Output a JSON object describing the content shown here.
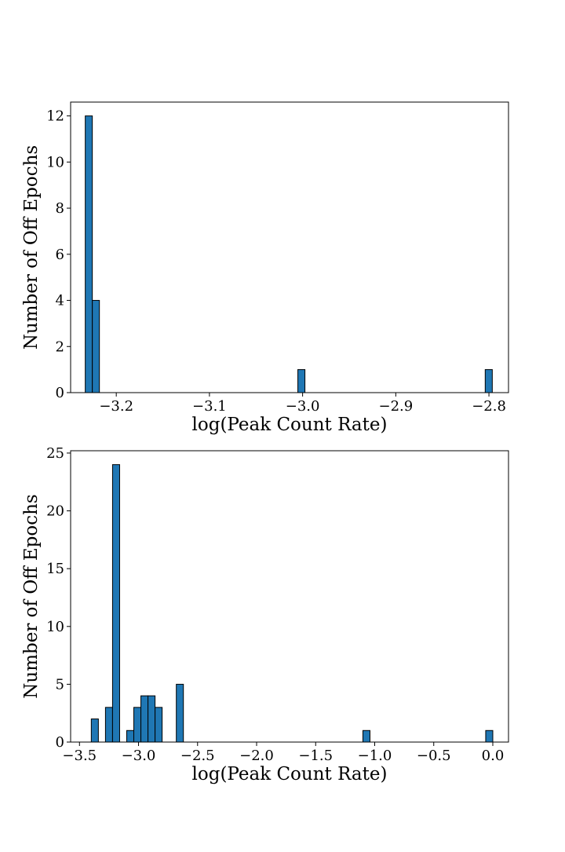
{
  "chart_data": [
    {
      "type": "bar",
      "title": "",
      "xlabel": "log(Peak Count Rate)",
      "ylabel": "Number of Off Epochs",
      "xlim": [
        -3.249,
        -2.779
      ],
      "ylim": [
        0,
        12.6
      ],
      "xticks": [
        -3.2,
        -3.1,
        -3.0,
        -2.9,
        -2.8
      ],
      "xtick_labels": [
        "−3.2",
        "−3.1",
        "−3.0",
        "−2.9",
        "−2.8"
      ],
      "yticks": [
        0,
        2,
        4,
        6,
        8,
        10,
        12
      ],
      "ytick_labels": [
        "0",
        "2",
        "4",
        "6",
        "8",
        "10",
        "12"
      ],
      "bar_color": "#1f77b4",
      "edge_color": "#000000",
      "bins": [
        {
          "x0": -3.2333,
          "x1": -3.2257,
          "count": 12
        },
        {
          "x0": -3.2257,
          "x1": -3.2181,
          "count": 4
        },
        {
          "x0": -3.0051,
          "x1": -2.9975,
          "count": 1
        },
        {
          "x0": -2.804,
          "x1": -2.7964,
          "count": 1
        }
      ]
    },
    {
      "type": "bar",
      "title": "",
      "xlabel": "log(Peak Count Rate)",
      "ylabel": "Number of Off Epochs",
      "xlim": [
        -3.575,
        0.133
      ],
      "ylim": [
        0,
        25.2
      ],
      "xticks": [
        -3.5,
        -3.0,
        -2.5,
        -2.0,
        -1.5,
        -1.0,
        -0.5,
        0.0
      ],
      "xtick_labels": [
        "−3.5",
        "−3.0",
        "−2.5",
        "−2.0",
        "−1.5",
        "−1.0",
        "−0.5",
        "0.0"
      ],
      "yticks": [
        0,
        5,
        10,
        15,
        20,
        25
      ],
      "ytick_labels": [
        "0",
        "5",
        "10",
        "15",
        "20",
        "25"
      ],
      "bar_color": "#1f77b4",
      "edge_color": "#000000",
      "bins": [
        {
          "x0": -3.4,
          "x1": -3.34,
          "count": 2
        },
        {
          "x0": -3.28,
          "x1": -3.22,
          "count": 3
        },
        {
          "x0": -3.22,
          "x1": -3.16,
          "count": 24
        },
        {
          "x0": -3.1,
          "x1": -3.04,
          "count": 1
        },
        {
          "x0": -3.04,
          "x1": -2.98,
          "count": 3
        },
        {
          "x0": -2.98,
          "x1": -2.92,
          "count": 4
        },
        {
          "x0": -2.92,
          "x1": -2.86,
          "count": 4
        },
        {
          "x0": -2.86,
          "x1": -2.8,
          "count": 3
        },
        {
          "x0": -2.68,
          "x1": -2.62,
          "count": 5
        },
        {
          "x0": -1.1,
          "x1": -1.04,
          "count": 1
        },
        {
          "x0": -0.06,
          "x1": 0.0,
          "count": 1
        }
      ]
    }
  ]
}
